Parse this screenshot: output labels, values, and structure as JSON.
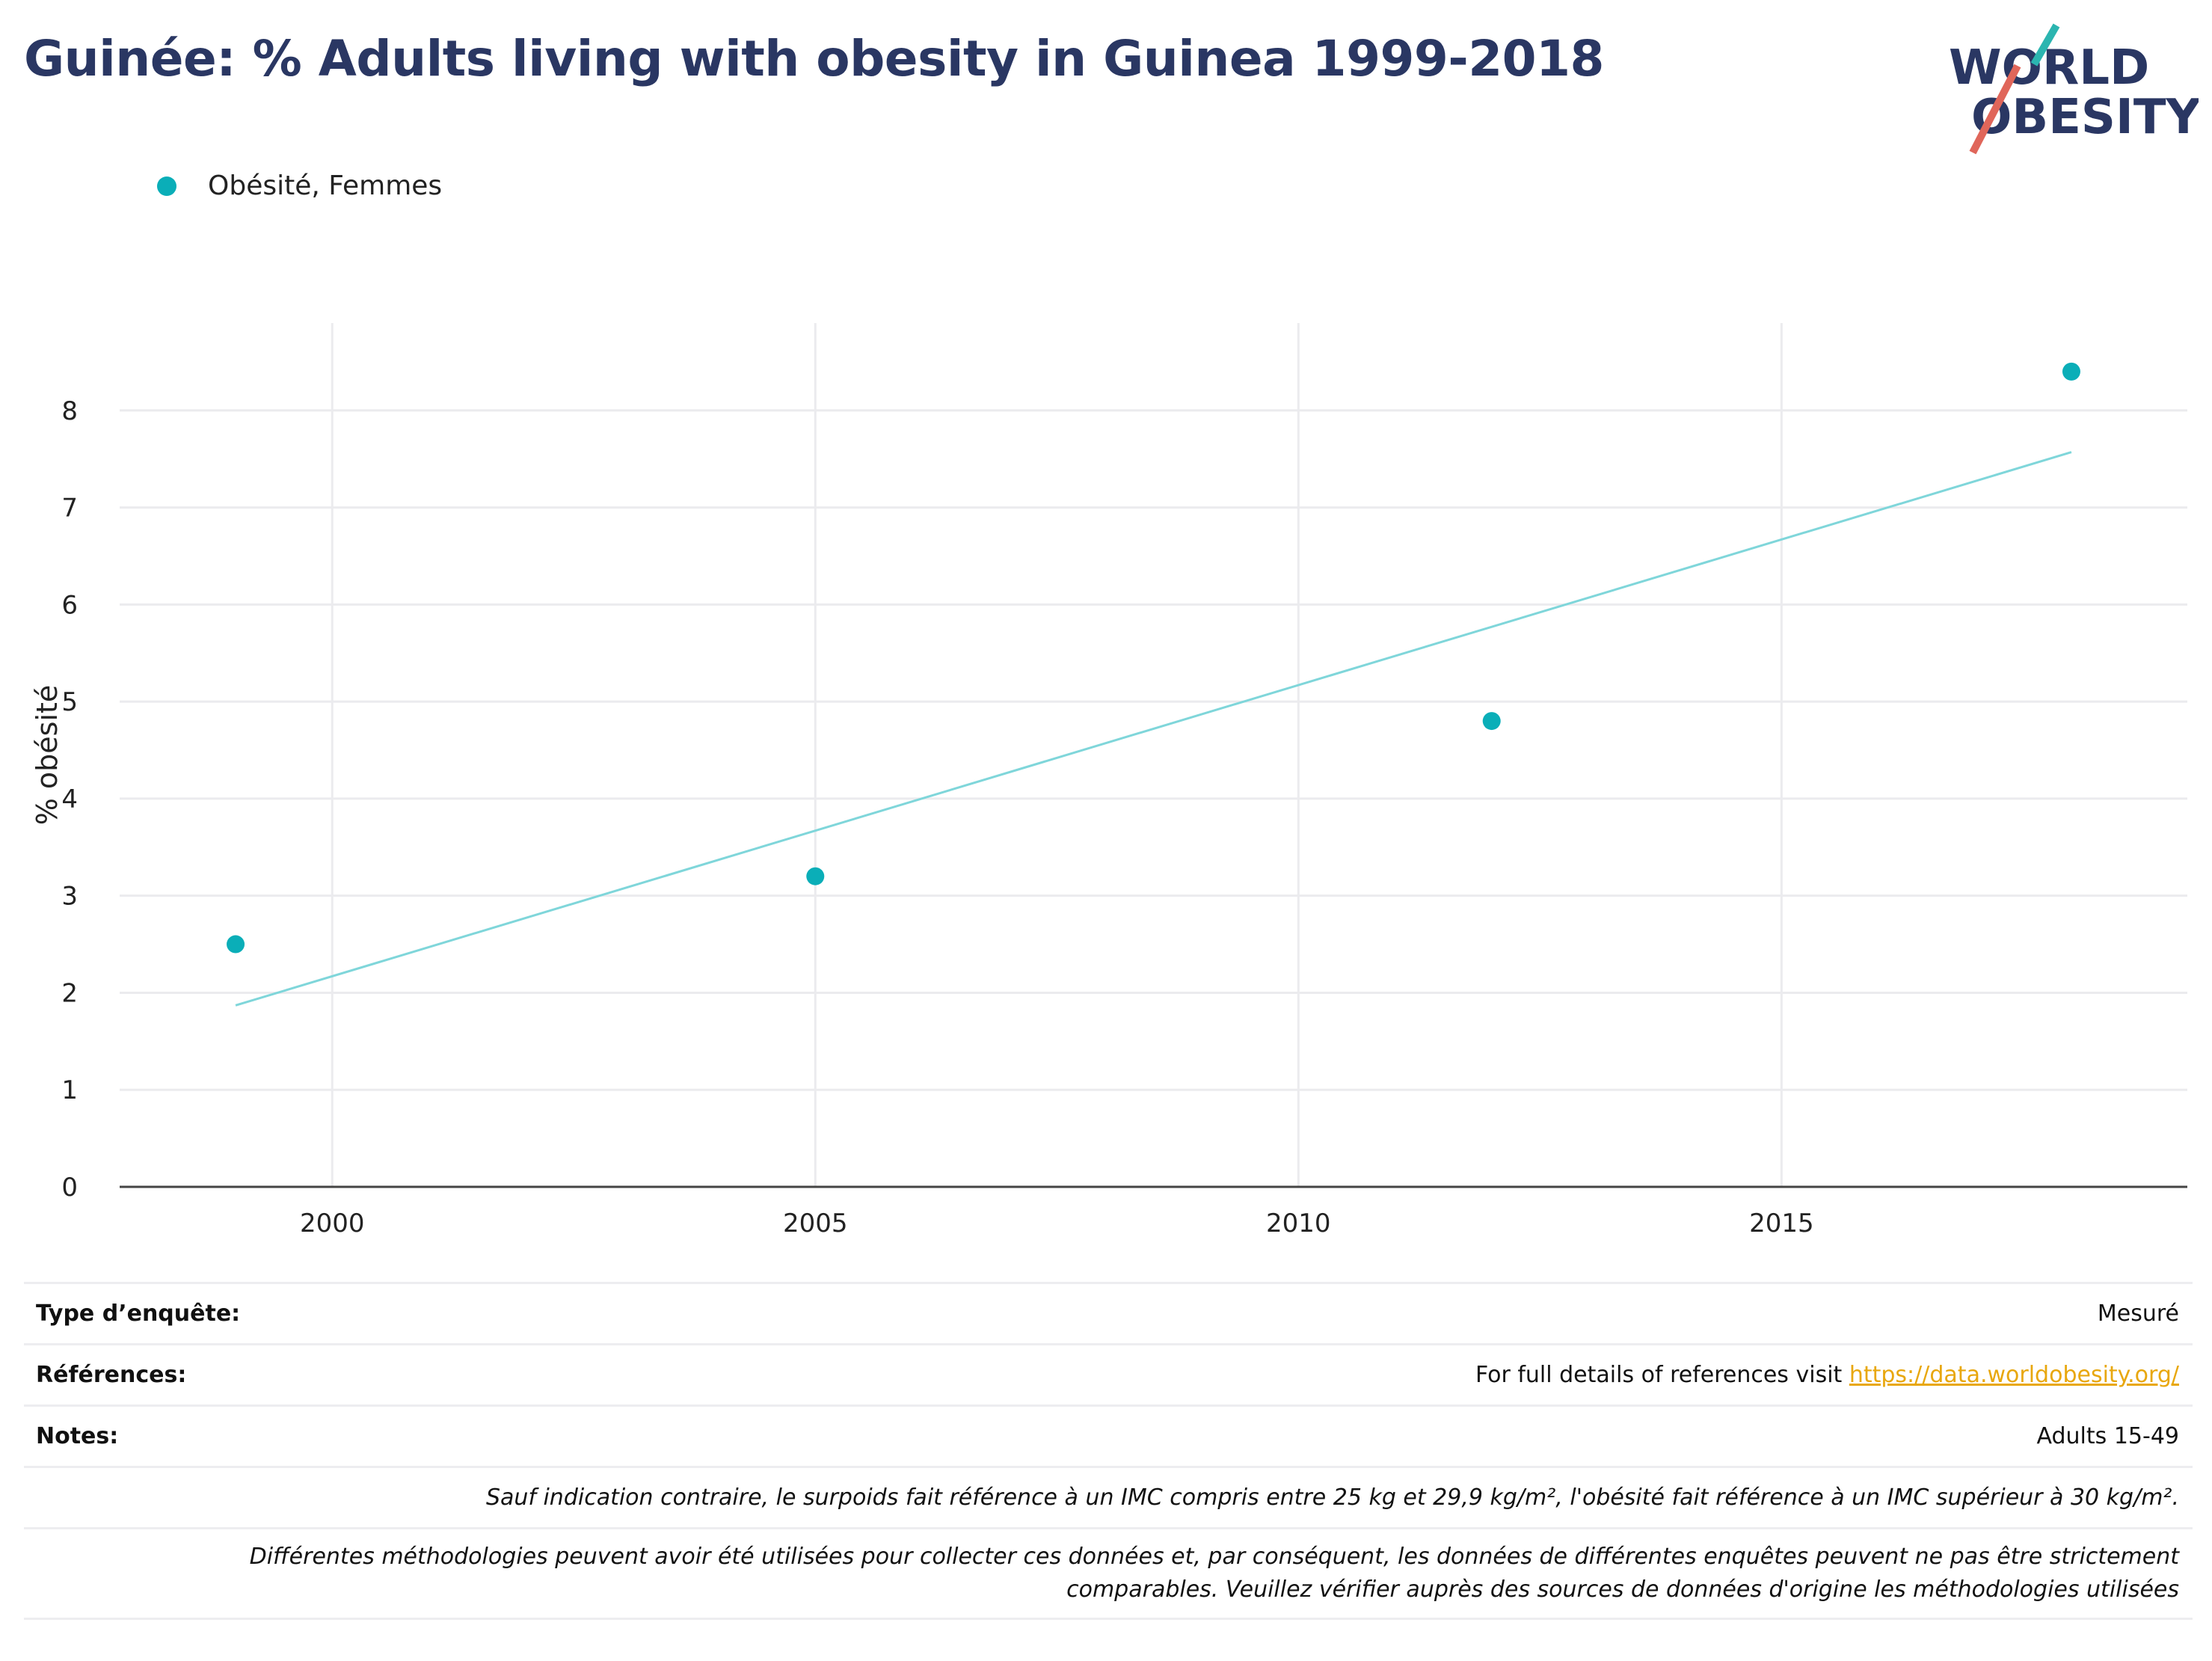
{
  "title": "Guinée: % Adults living with obesity in Guinea 1999-2018",
  "logo": {
    "line1": "WORLD",
    "line2": "OBESITY",
    "accent_teal": "#2bb5b0",
    "accent_red": "#e0665a",
    "text_color": "#2a3763"
  },
  "legend": {
    "label": "Obésité, Femmes",
    "color": "#0aaeb8"
  },
  "chart_data": {
    "type": "scatter",
    "title": "Guinée: % Adults living with obesity in Guinea 1999-2018",
    "xlabel": "",
    "ylabel": "% obésité",
    "xlim": [
      1997.8,
      2019.2
    ],
    "ylim": [
      0,
      8.9
    ],
    "x_ticks": [
      2000,
      2005,
      2010,
      2015
    ],
    "y_ticks": [
      0,
      1,
      2,
      3,
      4,
      5,
      6,
      7,
      8
    ],
    "grid": true,
    "legend_position": "top-left",
    "series": [
      {
        "name": "Obésité, Femmes",
        "color": "#0aaeb8",
        "x": [
          1999,
          2005,
          2012,
          2018
        ],
        "y": [
          2.5,
          3.2,
          4.8,
          8.4
        ]
      }
    ],
    "trendline": {
      "color": "#7fd6da",
      "x": [
        1999,
        2018
      ],
      "y": [
        1.87,
        7.57
      ]
    }
  },
  "footer": {
    "survey_type_label": "Type d’enquête:",
    "survey_type_value": "Mesuré",
    "references_label": "Références:",
    "references_text": "For full details of references visit ",
    "references_link": "https://data.worldobesity.org/",
    "notes_label": "Notes:",
    "notes_value": "Adults 15-49",
    "note_bmi": "Sauf indication contraire, le surpoids fait référence à un IMC compris entre 25 kg et 29,9 kg/m², l'obésité fait référence à un IMC supérieur à 30 kg/m².",
    "note_methods_line1": "Différentes méthodologies peuvent avoir été utilisées pour collecter ces données et, par conséquent, les données de différentes enquêtes peuvent ne pas être strictement",
    "note_methods_line2": "comparables. Veuillez vérifier auprès des sources de données d'origine les méthodologies utilisées"
  }
}
